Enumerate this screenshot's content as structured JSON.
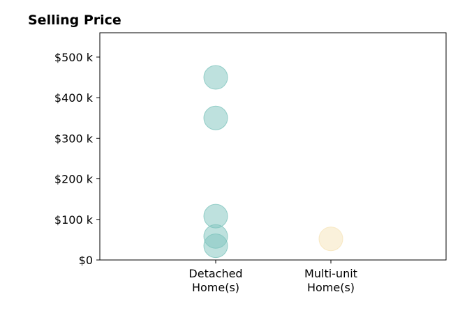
{
  "chart_data": {
    "type": "scatter",
    "title": "Selling Price",
    "xlabel": "",
    "ylabel": "",
    "categories": [
      [
        "Detached",
        "Home(s)"
      ],
      [
        "Multi-unit",
        "Home(s)"
      ]
    ],
    "ylim": [
      0,
      560000
    ],
    "yticks": [
      0,
      100000,
      200000,
      300000,
      400000,
      500000
    ],
    "ytick_labels": [
      "$0",
      "$100 k",
      "$200 k",
      "$300 k",
      "$400 k",
      "$500 k"
    ],
    "grid": false,
    "series": [
      {
        "category": "Detached Home(s)",
        "color": "#7ec4bd",
        "values": [
          450000,
          350000,
          108000,
          58000,
          35000
        ]
      },
      {
        "category": "Multi-unit Home(s)",
        "color": "#f6e3b8",
        "values": [
          52000
        ]
      }
    ]
  }
}
